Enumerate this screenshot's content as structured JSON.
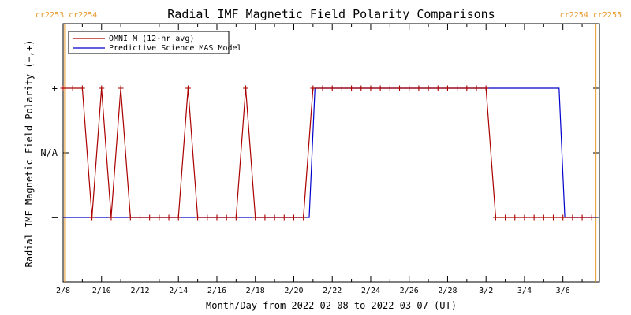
{
  "chart_data": {
    "type": "line",
    "title": "Radial IMF Magnetic Field Polarity Comparisons",
    "xlabel": "Month/Day from 2022-02-08 to 2022-03-07 (UT)",
    "ylabel": "Radial IMF Magnetic Field Polarity (−,+)",
    "x_ticks": [
      "2/8",
      "2/10",
      "2/12",
      "2/14",
      "2/16",
      "2/18",
      "2/20",
      "2/22",
      "2/24",
      "2/26",
      "2/28",
      "3/2",
      "3/4",
      "3/6"
    ],
    "y_ticks": [
      "+",
      "N/A",
      "–"
    ],
    "xlim_days": [
      0,
      27.9
    ],
    "ylim": [
      -2,
      2
    ],
    "carrington_labels": {
      "left": "cr2253 cr2254",
      "right": "cr2254 cr2255"
    },
    "carrington_marker_days": [
      0.1,
      27.7
    ],
    "legend_position": "top-left",
    "series": [
      {
        "name": "OMNI_M (12-hr avg)",
        "color": "#aa0000",
        "marker": "plus",
        "points": [
          [
            0.0,
            1
          ],
          [
            0.5,
            1
          ],
          [
            1.0,
            1
          ],
          [
            1.5,
            -1
          ],
          [
            2.0,
            1
          ],
          [
            2.5,
            -1
          ],
          [
            3.0,
            1
          ],
          [
            3.5,
            -1
          ],
          [
            4.0,
            -1
          ],
          [
            4.5,
            -1
          ],
          [
            5.0,
            -1
          ],
          [
            5.5,
            -1
          ],
          [
            6.0,
            -1
          ],
          [
            6.5,
            1
          ],
          [
            7.0,
            -1
          ],
          [
            7.5,
            -1
          ],
          [
            8.0,
            -1
          ],
          [
            8.5,
            -1
          ],
          [
            9.0,
            -1
          ],
          [
            9.5,
            1
          ],
          [
            10.0,
            -1
          ],
          [
            10.5,
            -1
          ],
          [
            11.0,
            -1
          ],
          [
            11.5,
            -1
          ],
          [
            12.0,
            -1
          ],
          [
            12.5,
            -1
          ],
          [
            13.0,
            1
          ],
          [
            13.5,
            1
          ],
          [
            14.0,
            1
          ],
          [
            14.5,
            1
          ],
          [
            15.0,
            1
          ],
          [
            15.5,
            1
          ],
          [
            16.0,
            1
          ],
          [
            16.5,
            1
          ],
          [
            17.0,
            1
          ],
          [
            17.5,
            1
          ],
          [
            18.0,
            1
          ],
          [
            18.5,
            1
          ],
          [
            19.0,
            1
          ],
          [
            19.5,
            1
          ],
          [
            20.0,
            1
          ],
          [
            20.5,
            1
          ],
          [
            21.0,
            1
          ],
          [
            21.5,
            1
          ],
          [
            22.0,
            1
          ],
          [
            22.5,
            -1
          ],
          [
            23.0,
            -1
          ],
          [
            23.5,
            -1
          ],
          [
            24.0,
            -1
          ],
          [
            24.5,
            -1
          ],
          [
            25.0,
            -1
          ],
          [
            25.5,
            -1
          ],
          [
            26.0,
            -1
          ],
          [
            26.5,
            -1
          ],
          [
            27.0,
            -1
          ],
          [
            27.5,
            -1
          ]
        ]
      },
      {
        "name": "Predictive Science MAS Model",
        "color": "#0000cc",
        "marker": "none",
        "points": [
          [
            0.0,
            -1
          ],
          [
            12.8,
            -1
          ],
          [
            13.1,
            1
          ],
          [
            25.8,
            1
          ],
          [
            26.1,
            -1
          ],
          [
            27.7,
            -1
          ]
        ]
      }
    ]
  }
}
